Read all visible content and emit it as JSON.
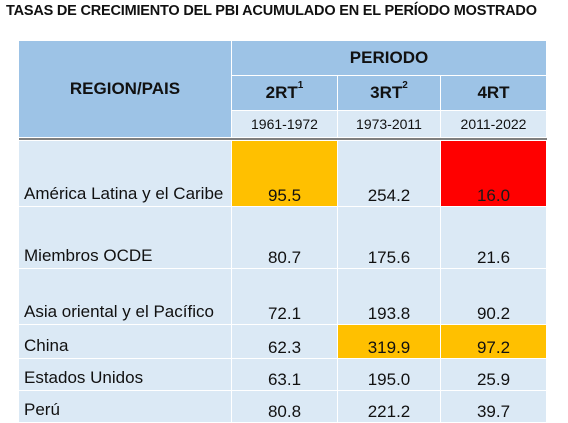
{
  "title": "TASAS DE CRECIMIENTO DEL PBI ACUMULADO EN EL PERÍODO MOSTRADO",
  "header": {
    "region_label": "REGION/PAIS",
    "periodo_label": "PERIODO",
    "periods": [
      {
        "label": "2RT",
        "sup": "1",
        "years": "1961-1972"
      },
      {
        "label": "3RT",
        "sup": "2",
        "years": "1973-2011"
      },
      {
        "label": "4RT",
        "sup": "",
        "years": "2011-2022"
      }
    ]
  },
  "rows": [
    {
      "region": "América Latina y el Caribe",
      "values": [
        "95.5",
        "254.2",
        "16.0"
      ],
      "highlights": [
        "yellow",
        "",
        "red"
      ]
    },
    {
      "region": "Miembros OCDE",
      "values": [
        "80.7",
        "175.6",
        "21.6"
      ],
      "highlights": [
        "",
        "",
        ""
      ]
    },
    {
      "region": "Asia oriental y el Pacífico",
      "values": [
        "72.1",
        "193.8",
        "90.2"
      ],
      "highlights": [
        "",
        "",
        ""
      ]
    },
    {
      "region": "China",
      "values": [
        "62.3",
        "319.9",
        "97.2"
      ],
      "highlights": [
        "",
        "yellow",
        "yellow"
      ]
    },
    {
      "region": "Estados Unidos",
      "values": [
        "63.1",
        "195.0",
        "25.9"
      ],
      "highlights": [
        "",
        "",
        ""
      ]
    },
    {
      "region": "Perú",
      "values": [
        "80.8",
        "221.2",
        "39.7"
      ],
      "highlights": [
        "",
        "",
        ""
      ]
    }
  ],
  "colors": {
    "header_bg": "#9dc3e6",
    "body_bg": "#dbe9f5",
    "highlight_yellow": "#ffc000",
    "highlight_red": "#ff0000"
  }
}
